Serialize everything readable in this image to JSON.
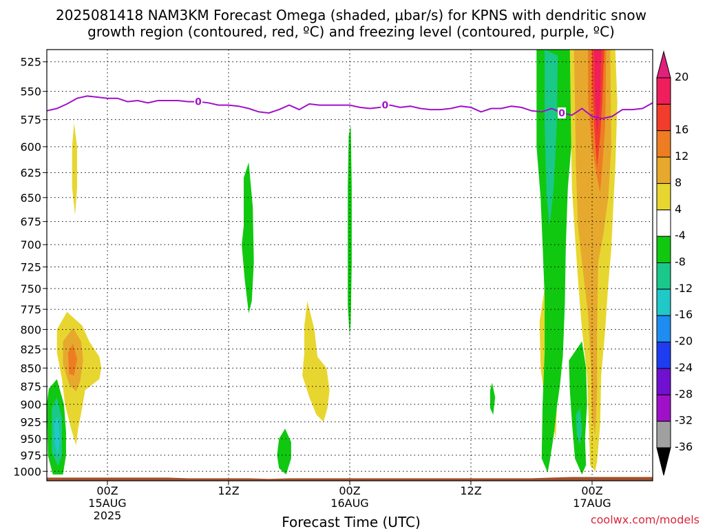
{
  "title": {
    "line1": "2025081418 NAM3KM Forecast Omega (shaded, μbar/s) for KPNS with dendritic snow",
    "line2": "growth region (contoured, red, ºC) and freezing level (contoured, purple, ºC)"
  },
  "xlabel": "Forecast Time (UTC)",
  "credit": "coolwx.com/models",
  "x_ticks": [
    {
      "hour": 6,
      "l1": "00Z",
      "l2": "15AUG",
      "l3": "2025"
    },
    {
      "hour": 18,
      "l1": "12Z",
      "l2": "",
      "l3": ""
    },
    {
      "hour": 30,
      "l1": "00Z",
      "l2": "16AUG",
      "l3": ""
    },
    {
      "hour": 42,
      "l1": "12Z",
      "l2": "",
      "l3": ""
    },
    {
      "hour": 54,
      "l1": "00Z",
      "l2": "17AUG",
      "l3": ""
    }
  ],
  "chart_data": {
    "type": "heatmap",
    "x_unit": "forecast hour from 2025081418",
    "xlim": [
      0,
      60
    ],
    "y_unit": "pressure (mb)",
    "y_scale": "log",
    "ylim": [
      1015,
      515
    ],
    "y_ticks": [
      525,
      550,
      575,
      600,
      625,
      650,
      675,
      700,
      725,
      750,
      775,
      800,
      825,
      850,
      875,
      900,
      925,
      950,
      975,
      1000
    ],
    "grid": true,
    "colorbar": {
      "labels": [
        20,
        16,
        12,
        8,
        4,
        -4,
        -8,
        -12,
        -16,
        -20,
        -24,
        -28,
        -32,
        -36
      ],
      "colors": [
        "#f01e5c",
        "#f23c2c",
        "#ee7d22",
        "#e6a92e",
        "#e8d630",
        "#ffffff",
        "#10c810",
        "#1ac88a",
        "#20c8c8",
        "#1e8cf0",
        "#1e3cf0",
        "#7010d0",
        "#a010c8",
        "#a0a0a0"
      ],
      "top_color": "#e0207a",
      "bottom_color": "#000000"
    },
    "freezing_level": {
      "label": "0",
      "color": "#a010c8",
      "x": [
        0,
        1,
        2,
        3,
        4,
        5,
        6,
        7,
        8,
        9,
        10,
        11,
        12,
        13,
        14,
        15,
        16,
        17,
        18,
        19,
        20,
        21,
        22,
        23,
        24,
        25,
        26,
        27,
        28,
        29,
        30,
        31,
        32,
        33,
        34,
        35,
        36,
        37,
        38,
        39,
        40,
        41,
        42,
        43,
        44,
        45,
        46,
        47,
        48,
        49,
        50,
        51,
        52,
        53,
        54,
        55,
        56,
        57,
        58,
        59,
        60
      ],
      "y": [
        567,
        565,
        561,
        556,
        554,
        555,
        556,
        556,
        559,
        558,
        560,
        558,
        558,
        558,
        559,
        559,
        560,
        562,
        562,
        563,
        565,
        568,
        569,
        566,
        562,
        566,
        561,
        562,
        562,
        562,
        562,
        564,
        565,
        564,
        562,
        564,
        563,
        565,
        566,
        566,
        565,
        563,
        564,
        568,
        565,
        565,
        563,
        564,
        567,
        568,
        565,
        569,
        571,
        565,
        572,
        574,
        572,
        566,
        566,
        565,
        560
      ]
    },
    "omega_regions": [
      {
        "level": 4,
        "color": "#e8d630",
        "points": [
          [
            2.7,
            578
          ],
          [
            3.0,
            600
          ],
          [
            3.0,
            640
          ],
          [
            2.8,
            668
          ],
          [
            2.5,
            640
          ],
          [
            2.5,
            600
          ]
        ]
      },
      {
        "level": 4,
        "color": "#e8d630",
        "points": [
          [
            1.0,
            800
          ],
          [
            2.0,
            778
          ],
          [
            3.5,
            795
          ],
          [
            4.2,
            815
          ],
          [
            5.2,
            835
          ],
          [
            5.4,
            850
          ],
          [
            5.2,
            865
          ],
          [
            3.8,
            880
          ],
          [
            3.5,
            905
          ],
          [
            3.1,
            935
          ],
          [
            2.9,
            960
          ],
          [
            2.4,
            935
          ],
          [
            1.8,
            900
          ],
          [
            1.5,
            865
          ],
          [
            1.0,
            830
          ]
        ]
      },
      {
        "level": 8,
        "color": "#e6a92e",
        "points": [
          [
            1.6,
            815
          ],
          [
            2.6,
            798
          ],
          [
            3.4,
            815
          ],
          [
            3.6,
            840
          ],
          [
            3.3,
            868
          ],
          [
            2.9,
            882
          ],
          [
            2.2,
            872
          ],
          [
            1.6,
            845
          ]
        ]
      },
      {
        "level": 12,
        "color": "#ee7d22",
        "points": [
          [
            2.1,
            830
          ],
          [
            2.6,
            818
          ],
          [
            3.0,
            838
          ],
          [
            2.7,
            860
          ],
          [
            2.2,
            858
          ]
        ]
      },
      {
        "level": -8,
        "color": "#10c810",
        "points": [
          [
            0.2,
            878
          ],
          [
            1.0,
            865
          ],
          [
            1.7,
            900
          ],
          [
            1.9,
            940
          ],
          [
            1.9,
            975
          ],
          [
            1.6,
            1005
          ],
          [
            0.6,
            1005
          ],
          [
            0.1,
            975
          ],
          [
            0.0,
            900
          ]
        ]
      },
      {
        "level": -12,
        "color": "#1ac88a",
        "points": [
          [
            0.5,
            905
          ],
          [
            1.0,
            890
          ],
          [
            1.5,
            920
          ],
          [
            1.5,
            975
          ],
          [
            1.1,
            992
          ],
          [
            0.5,
            970
          ]
        ]
      },
      {
        "level": -16,
        "color": "#20c8c8",
        "points": [
          [
            0.7,
            925
          ],
          [
            1.1,
            918
          ],
          [
            1.3,
            950
          ],
          [
            1.1,
            975
          ],
          [
            0.8,
            960
          ]
        ]
      },
      {
        "level": -8,
        "color": "#10c810",
        "points": [
          [
            19.5,
            630
          ],
          [
            20.0,
            615
          ],
          [
            20.4,
            660
          ],
          [
            20.5,
            720
          ],
          [
            20.3,
            765
          ],
          [
            20.0,
            780
          ],
          [
            19.6,
            740
          ],
          [
            19.3,
            700
          ],
          [
            19.5,
            680
          ]
        ]
      },
      {
        "level": -8,
        "color": "#10c810",
        "points": [
          [
            29.9,
            590
          ],
          [
            30.1,
            580
          ],
          [
            30.2,
            640
          ],
          [
            30.2,
            720
          ],
          [
            30.1,
            790
          ],
          [
            30.0,
            810
          ],
          [
            29.8,
            770
          ],
          [
            29.8,
            700
          ],
          [
            29.8,
            640
          ]
        ]
      },
      {
        "level": 4,
        "color": "#e8d630",
        "points": [
          [
            25.5,
            795
          ],
          [
            25.8,
            765
          ],
          [
            26.5,
            800
          ],
          [
            26.8,
            835
          ],
          [
            27.7,
            850
          ],
          [
            28.0,
            880
          ],
          [
            27.8,
            905
          ],
          [
            27.4,
            925
          ],
          [
            26.7,
            915
          ],
          [
            26.0,
            890
          ],
          [
            25.3,
            860
          ],
          [
            25.5,
            830
          ]
        ]
      },
      {
        "level": -8,
        "color": "#10c810",
        "points": [
          [
            23.0,
            950
          ],
          [
            23.6,
            935
          ],
          [
            24.2,
            955
          ],
          [
            24.2,
            980
          ],
          [
            23.7,
            1005
          ],
          [
            23.0,
            995
          ],
          [
            22.8,
            975
          ]
        ]
      },
      {
        "level": -8,
        "color": "#10c810",
        "points": [
          [
            43.9,
            880
          ],
          [
            44.1,
            870
          ],
          [
            44.4,
            890
          ],
          [
            44.2,
            915
          ],
          [
            43.9,
            905
          ]
        ]
      },
      {
        "level": 4,
        "color": "#e8d630",
        "points": [
          [
            48.8,
            790
          ],
          [
            49.3,
            750
          ],
          [
            49.6,
            820
          ],
          [
            49.6,
            870
          ],
          [
            49.3,
            890
          ],
          [
            48.9,
            850
          ]
        ]
      },
      {
        "level": 4,
        "color": "#e8d630",
        "points": [
          [
            50.2,
            890
          ],
          [
            50.4,
            880
          ],
          [
            50.5,
            910
          ],
          [
            50.4,
            950
          ],
          [
            50.2,
            935
          ]
        ]
      },
      {
        "level": -8,
        "color": "#10c810",
        "points": [
          [
            48.5,
            515
          ],
          [
            52.0,
            515
          ],
          [
            52.3,
            560
          ],
          [
            51.6,
            640
          ],
          [
            51.4,
            700
          ],
          [
            51.3,
            770
          ],
          [
            51.1,
            835
          ],
          [
            50.8,
            875
          ],
          [
            50.5,
            905
          ],
          [
            50.2,
            945
          ],
          [
            49.8,
            985
          ],
          [
            49.6,
            1002
          ],
          [
            49.0,
            980
          ],
          [
            49.1,
            900
          ],
          [
            49.3,
            830
          ],
          [
            49.3,
            760
          ],
          [
            49.1,
            700
          ],
          [
            48.9,
            650
          ],
          [
            48.5,
            600
          ]
        ]
      },
      {
        "level": -12,
        "color": "#1ac88a",
        "points": [
          [
            49.3,
            515
          ],
          [
            50.6,
            520
          ],
          [
            50.5,
            580
          ],
          [
            50.2,
            640
          ],
          [
            49.8,
            680
          ],
          [
            49.5,
            650
          ],
          [
            49.3,
            580
          ]
        ]
      },
      {
        "level": -8,
        "color": "#10c810",
        "points": [
          [
            51.7,
            840
          ],
          [
            53.0,
            815
          ],
          [
            53.4,
            850
          ],
          [
            53.5,
            900
          ],
          [
            53.3,
            950
          ],
          [
            53.4,
            990
          ],
          [
            53.0,
            1005
          ],
          [
            52.3,
            980
          ],
          [
            52.0,
            925
          ],
          [
            51.8,
            880
          ]
        ]
      },
      {
        "level": -12,
        "color": "#1ac88a",
        "points": [
          [
            52.4,
            915
          ],
          [
            52.8,
            905
          ],
          [
            53.0,
            935
          ],
          [
            52.8,
            960
          ],
          [
            52.5,
            945
          ]
        ]
      },
      {
        "level": 4,
        "color": "#e8d630",
        "points": [
          [
            51.8,
            515
          ],
          [
            56.3,
            515
          ],
          [
            56.5,
            560
          ],
          [
            56.3,
            620
          ],
          [
            56.1,
            660
          ],
          [
            55.9,
            705
          ],
          [
            55.6,
            745
          ],
          [
            55.3,
            800
          ],
          [
            54.9,
            860
          ],
          [
            54.8,
            930
          ],
          [
            54.5,
            985
          ],
          [
            54.3,
            1000
          ],
          [
            53.8,
            990
          ],
          [
            53.7,
            940
          ],
          [
            53.5,
            860
          ],
          [
            53.0,
            800
          ],
          [
            52.6,
            740
          ],
          [
            52.3,
            690
          ],
          [
            52.0,
            640
          ],
          [
            51.9,
            580
          ]
        ]
      },
      {
        "level": 8,
        "color": "#e6a92e",
        "points": [
          [
            52.2,
            515
          ],
          [
            55.8,
            515
          ],
          [
            55.9,
            600
          ],
          [
            55.6,
            650
          ],
          [
            55.1,
            690
          ],
          [
            54.6,
            720
          ],
          [
            54.5,
            800
          ],
          [
            54.5,
            880
          ],
          [
            54.3,
            945
          ],
          [
            54.0,
            920
          ],
          [
            53.9,
            850
          ],
          [
            53.6,
            780
          ],
          [
            53.1,
            730
          ],
          [
            52.6,
            680
          ],
          [
            52.4,
            620
          ],
          [
            52.3,
            560
          ]
        ]
      },
      {
        "level": 12,
        "color": "#ee7d22",
        "points": [
          [
            53.6,
            515
          ],
          [
            55.4,
            515
          ],
          [
            55.3,
            580
          ],
          [
            55.0,
            620
          ],
          [
            54.8,
            645
          ],
          [
            54.5,
            630
          ],
          [
            54.0,
            600
          ],
          [
            53.6,
            560
          ]
        ]
      },
      {
        "level": 16,
        "color": "#f23c2c",
        "points": [
          [
            54.0,
            515
          ],
          [
            55.2,
            515
          ],
          [
            55.0,
            560
          ],
          [
            54.8,
            590
          ],
          [
            54.5,
            620
          ],
          [
            54.2,
            580
          ],
          [
            54.0,
            540
          ]
        ]
      },
      {
        "level": 20,
        "color": "#f01e5c",
        "points": [
          [
            54.2,
            515
          ],
          [
            54.9,
            515
          ],
          [
            54.8,
            560
          ],
          [
            54.5,
            590
          ],
          [
            54.3,
            560
          ]
        ]
      }
    ],
    "terrain_color": "#a0522d"
  }
}
